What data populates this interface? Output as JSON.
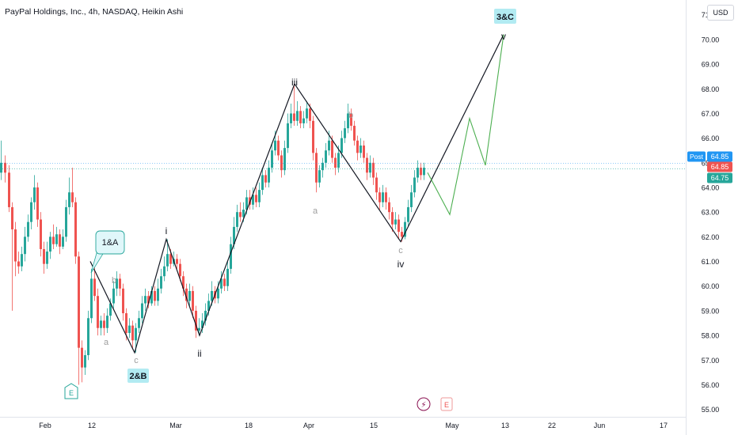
{
  "title": "PayPal Holdings, Inc., 4h, NASDAQ, Heikin Ashi",
  "currency_label": "USD",
  "colors": {
    "up": "#26a69a",
    "down": "#ef5350",
    "wave": "#131722",
    "projection": "#4caf50",
    "sub_label": "#9e9e9e",
    "tag_bg": "#b2ebf2"
  },
  "chart_data": {
    "type": "candlestick",
    "ylim": [
      54.7,
      71.6
    ],
    "y_ticks": [
      "55.00",
      "56.00",
      "57.00",
      "58.00",
      "59.00",
      "60.00",
      "61.00",
      "62.00",
      "63.00",
      "64.00",
      "65.00",
      "66.00",
      "67.00",
      "68.00",
      "69.00",
      "70.00",
      "71.00"
    ],
    "x_ticks": [
      "Feb",
      "12",
      "Mar",
      "18",
      "Apr",
      "15",
      "May",
      "13",
      "22",
      "Jun",
      "17"
    ],
    "price_tags": [
      {
        "label": "Post",
        "value": "64.85",
        "color": "#2196f3"
      },
      {
        "label": "",
        "value": "64.85",
        "color": "#ef5350"
      },
      {
        "label": "",
        "value": "64.75",
        "color": "#26a69a"
      }
    ],
    "wave_labels": [
      "i",
      "ii",
      "iii",
      "iv",
      "v"
    ],
    "tag_labels": [
      "1&A",
      "2&B",
      "3&C"
    ],
    "sub_labels": [
      "a",
      "b",
      "c",
      "a",
      "b",
      "c"
    ],
    "event_badges": [
      "E",
      "⚡",
      "E"
    ],
    "wave_path": [
      [
        114,
        61.0
      ],
      [
        170,
        57.3
      ],
      [
        210,
        61.9
      ],
      [
        252,
        58.0
      ],
      [
        372,
        68.2
      ],
      [
        506,
        61.8
      ],
      [
        636,
        70.2
      ]
    ],
    "projection_path": [
      [
        540,
        64.6
      ],
      [
        568,
        62.9
      ],
      [
        593,
        66.8
      ],
      [
        613,
        64.9
      ],
      [
        636,
        70.2
      ]
    ],
    "candles": [
      [
        0,
        64.6,
        65.0,
        65.9,
        64.3
      ],
      [
        5,
        65.0,
        64.6,
        65.3,
        64.2
      ],
      [
        10,
        64.6,
        63.2,
        64.9,
        63.0
      ],
      [
        14,
        63.2,
        62.3,
        63.4,
        59.0
      ],
      [
        18,
        62.3,
        61.0,
        62.6,
        60.4
      ],
      [
        22,
        61.0,
        60.8,
        61.4,
        60.5
      ],
      [
        26,
        60.8,
        61.3,
        61.6,
        60.6
      ],
      [
        30,
        61.3,
        62.0,
        62.4,
        61.0
      ],
      [
        34,
        62.0,
        62.6,
        62.9,
        61.8
      ],
      [
        38,
        62.6,
        63.4,
        63.6,
        62.3
      ],
      [
        42,
        63.4,
        64.0,
        64.5,
        63.1
      ],
      [
        46,
        64.0,
        62.7,
        64.2,
        62.4
      ],
      [
        50,
        62.7,
        61.5,
        63.0,
        61.2
      ],
      [
        54,
        61.5,
        60.9,
        61.8,
        60.5
      ],
      [
        58,
        60.9,
        61.4,
        61.8,
        60.7
      ],
      [
        62,
        61.4,
        62.0,
        62.2,
        61.1
      ],
      [
        66,
        62.0,
        61.7,
        62.5,
        61.5
      ],
      [
        70,
        61.7,
        62.1,
        62.4,
        61.6
      ],
      [
        74,
        62.1,
        61.6,
        62.3,
        61.3
      ],
      [
        78,
        61.6,
        62.0,
        62.3,
        61.5
      ],
      [
        82,
        62.0,
        63.2,
        63.5,
        61.8
      ],
      [
        86,
        63.2,
        63.8,
        64.4,
        62.9
      ],
      [
        90,
        63.8,
        63.4,
        64.8,
        63.2
      ],
      [
        94,
        63.4,
        61.2,
        63.6,
        60.9
      ],
      [
        98,
        61.2,
        57.5,
        61.4,
        56.0
      ],
      [
        102,
        57.5,
        56.7,
        57.8,
        56.1
      ],
      [
        106,
        56.7,
        57.2,
        57.4,
        56.4
      ],
      [
        110,
        57.2,
        58.7,
        59.0,
        57.0
      ],
      [
        114,
        58.7,
        60.3,
        60.7,
        58.5
      ],
      [
        118,
        60.3,
        59.6,
        60.8,
        59.4
      ],
      [
        122,
        59.6,
        58.3,
        59.9,
        58.0
      ],
      [
        126,
        58.3,
        58.6,
        58.8,
        58.0
      ],
      [
        130,
        58.6,
        58.3,
        58.9,
        58.0
      ],
      [
        134,
        58.3,
        58.8,
        59.1,
        58.1
      ],
      [
        138,
        58.8,
        59.3,
        59.5,
        58.6
      ],
      [
        142,
        59.3,
        59.9,
        60.2,
        59.1
      ],
      [
        146,
        59.9,
        60.3,
        60.6,
        59.6
      ],
      [
        150,
        60.3,
        59.9,
        60.5,
        59.6
      ],
      [
        154,
        59.9,
        58.9,
        60.1,
        58.6
      ],
      [
        158,
        58.9,
        58.1,
        59.1,
        57.8
      ],
      [
        162,
        58.1,
        58.4,
        58.7,
        57.9
      ],
      [
        166,
        58.4,
        57.8,
        58.6,
        57.5
      ],
      [
        170,
        57.8,
        58.3,
        58.5,
        57.3
      ],
      [
        174,
        58.3,
        58.7,
        59.0,
        58.1
      ],
      [
        178,
        58.7,
        59.3,
        59.6,
        58.5
      ],
      [
        182,
        59.3,
        59.6,
        59.9,
        59.0
      ],
      [
        186,
        59.6,
        59.3,
        59.8,
        59.1
      ],
      [
        190,
        59.3,
        59.8,
        60.0,
        59.2
      ],
      [
        194,
        59.8,
        59.4,
        60.0,
        59.2
      ],
      [
        198,
        59.4,
        59.9,
        60.3,
        59.2
      ],
      [
        202,
        59.9,
        60.4,
        60.7,
        59.7
      ],
      [
        206,
        60.4,
        60.8,
        61.2,
        60.2
      ],
      [
        210,
        60.8,
        61.3,
        61.9,
        60.6
      ],
      [
        214,
        61.3,
        60.9,
        61.5,
        60.7
      ],
      [
        218,
        60.9,
        61.1,
        61.4,
        60.8
      ],
      [
        222,
        61.1,
        60.9,
        61.3,
        60.7
      ],
      [
        226,
        60.9,
        60.4,
        61.1,
        60.2
      ],
      [
        230,
        60.4,
        59.9,
        60.6,
        59.6
      ],
      [
        234,
        59.9,
        59.4,
        60.1,
        59.1
      ],
      [
        238,
        59.4,
        59.8,
        60.1,
        59.2
      ],
      [
        242,
        59.8,
        59.0,
        60.0,
        58.7
      ],
      [
        246,
        59.0,
        58.2,
        59.2,
        57.9
      ],
      [
        250,
        58.2,
        58.3,
        58.7,
        58.0
      ],
      [
        254,
        58.3,
        58.6,
        58.9,
        58.1
      ],
      [
        258,
        58.6,
        59.0,
        59.3,
        58.4
      ],
      [
        262,
        59.0,
        59.4,
        59.7,
        58.8
      ],
      [
        266,
        59.4,
        59.8,
        60.2,
        59.2
      ],
      [
        270,
        59.8,
        59.5,
        60.0,
        59.3
      ],
      [
        274,
        59.5,
        59.9,
        60.2,
        59.3
      ],
      [
        278,
        59.9,
        60.3,
        60.6,
        59.7
      ],
      [
        282,
        60.3,
        60.0,
        60.5,
        59.8
      ],
      [
        286,
        60.0,
        60.7,
        61.0,
        59.8
      ],
      [
        290,
        60.7,
        61.7,
        62.0,
        60.5
      ],
      [
        294,
        61.7,
        62.4,
        62.8,
        61.5
      ],
      [
        298,
        62.4,
        63.0,
        63.3,
        62.2
      ],
      [
        302,
        63.0,
        62.8,
        63.4,
        62.6
      ],
      [
        306,
        62.8,
        63.1,
        63.4,
        62.6
      ],
      [
        310,
        63.1,
        63.6,
        63.9,
        62.9
      ],
      [
        314,
        63.6,
        63.3,
        63.9,
        63.1
      ],
      [
        318,
        63.3,
        63.7,
        64.0,
        63.1
      ],
      [
        322,
        63.7,
        63.4,
        64.0,
        63.2
      ],
      [
        326,
        63.4,
        63.9,
        64.2,
        63.2
      ],
      [
        330,
        63.9,
        64.5,
        64.8,
        63.7
      ],
      [
        334,
        64.5,
        64.2,
        64.7,
        64.0
      ],
      [
        338,
        64.2,
        64.8,
        65.1,
        64.0
      ],
      [
        342,
        64.8,
        65.5,
        65.8,
        64.6
      ],
      [
        346,
        65.5,
        65.9,
        66.3,
        65.3
      ],
      [
        350,
        65.9,
        65.3,
        66.1,
        65.1
      ],
      [
        354,
        65.3,
        64.7,
        65.5,
        64.4
      ],
      [
        358,
        64.7,
        65.6,
        65.9,
        64.5
      ],
      [
        362,
        65.6,
        66.6,
        67.0,
        65.4
      ],
      [
        366,
        66.6,
        67.0,
        67.4,
        66.4
      ],
      [
        370,
        67.0,
        66.7,
        68.2,
        66.5
      ],
      [
        374,
        66.7,
        67.1,
        67.5,
        66.5
      ],
      [
        378,
        67.1,
        66.6,
        67.3,
        66.4
      ],
      [
        382,
        66.6,
        66.8,
        67.1,
        66.4
      ],
      [
        386,
        66.8,
        67.2,
        67.5,
        66.6
      ],
      [
        390,
        67.2,
        66.7,
        67.4,
        66.4
      ],
      [
        394,
        66.7,
        65.4,
        66.9,
        65.1
      ],
      [
        398,
        65.4,
        64.2,
        65.6,
        63.8
      ],
      [
        402,
        64.2,
        64.7,
        64.9,
        64.0
      ],
      [
        406,
        64.7,
        65.0,
        65.2,
        64.4
      ],
      [
        410,
        65.0,
        65.5,
        65.8,
        64.8
      ],
      [
        414,
        65.5,
        65.9,
        66.3,
        65.3
      ],
      [
        418,
        65.9,
        65.2,
        66.1,
        65.0
      ],
      [
        422,
        65.2,
        64.8,
        65.4,
        64.5
      ],
      [
        426,
        64.8,
        65.4,
        65.7,
        64.6
      ],
      [
        430,
        65.4,
        66.0,
        66.3,
        65.2
      ],
      [
        434,
        66.0,
        66.4,
        66.7,
        65.8
      ],
      [
        438,
        66.4,
        67.0,
        67.4,
        66.2
      ],
      [
        442,
        67.0,
        66.5,
        67.2,
        66.3
      ],
      [
        446,
        66.5,
        65.9,
        66.7,
        65.7
      ],
      [
        450,
        65.9,
        65.4,
        66.1,
        65.1
      ],
      [
        454,
        65.4,
        65.7,
        66.0,
        65.2
      ],
      [
        458,
        65.7,
        65.2,
        65.9,
        65.0
      ],
      [
        462,
        65.2,
        64.6,
        65.4,
        64.3
      ],
      [
        466,
        64.6,
        65.0,
        65.3,
        64.4
      ],
      [
        470,
        65.0,
        64.4,
        65.2,
        64.1
      ],
      [
        474,
        64.4,
        63.8,
        64.6,
        63.5
      ],
      [
        478,
        63.8,
        63.4,
        64.0,
        63.1
      ],
      [
        482,
        63.4,
        63.8,
        64.1,
        63.2
      ],
      [
        486,
        63.8,
        63.4,
        64.0,
        63.1
      ],
      [
        490,
        63.4,
        63.0,
        63.6,
        62.7
      ],
      [
        494,
        63.0,
        62.5,
        63.2,
        62.2
      ],
      [
        498,
        62.5,
        62.7,
        63.0,
        62.3
      ],
      [
        502,
        62.7,
        62.2,
        62.9,
        61.9
      ],
      [
        506,
        62.2,
        62.0,
        62.4,
        61.8
      ],
      [
        510,
        62.0,
        62.6,
        62.8,
        61.9
      ],
      [
        514,
        62.6,
        63.2,
        63.5,
        62.4
      ],
      [
        518,
        63.2,
        63.8,
        64.1,
        63.0
      ],
      [
        522,
        63.8,
        64.4,
        64.7,
        63.6
      ],
      [
        526,
        64.4,
        64.8,
        65.1,
        64.2
      ],
      [
        530,
        64.8,
        64.5,
        65.0,
        64.3
      ],
      [
        534,
        64.5,
        64.8,
        65.0,
        64.3
      ]
    ]
  }
}
